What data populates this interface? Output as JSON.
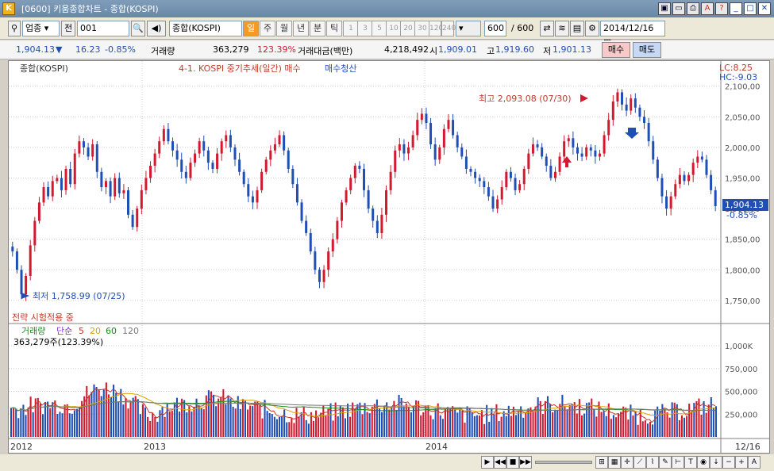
{
  "window": {
    "title": "[0600] 키움종합차트 - 종합(KOSPI)"
  },
  "toolbar": {
    "market": "업종",
    "jeon": "전",
    "code": "001",
    "name": "종합(KOSPI)",
    "periods": [
      "일",
      "주",
      "월",
      "년",
      "분",
      "틱"
    ],
    "minutes": [
      "1",
      "3",
      "5",
      "10",
      "20",
      "30",
      "120",
      "240"
    ],
    "count": "600",
    "count_max": "/ 600",
    "date": "2014/12/16"
  },
  "quote": {
    "price": "1,904.13",
    "arrow": "▼",
    "change": "16.23",
    "rate": "-0.85%",
    "volume_label": "거래량",
    "volume": "363,279",
    "volume_rate": "123.39%",
    "amount_label": "거래대금(백만)",
    "amount": "4,218,492",
    "open_label": "시",
    "open": "1,909.01",
    "high_label": "고",
    "high": "1,919.60",
    "low_label": "저",
    "low": "1,901.13",
    "buy": "매수",
    "sell": "매도"
  },
  "chart_data": {
    "type": "candlestick",
    "legend": {
      "name": "종합(KOSPI)",
      "strategy": "4-1. KOSPI 중기추세(일간) 매수",
      "strategy_sell": "매수청산"
    },
    "lc": "LC:8.25",
    "hc": "HC:-9.03",
    "ylim": [
      1720,
      2110
    ],
    "yticks": [
      "2,100,00",
      "2,050,00",
      "2,000,00",
      "1,950,00",
      "1,900,00",
      "1,850,00",
      "1,800,00",
      "1,750,00"
    ],
    "ytick_values": [
      2100,
      2050,
      2000,
      1950,
      1900,
      1850,
      1800,
      1750
    ],
    "last_price": "1,904.13",
    "last_rate": "-0.85%",
    "max_label": "최고 2,093.08 (07/30)",
    "min_label": "최저 1,758.99 (07/25)",
    "strategy_status": "전략 시험적용 중",
    "xlabels": [
      "2012",
      "2013",
      "2014"
    ],
    "xlabel_end": "12/16",
    "closes": [
      1830,
      1800,
      1760,
      1790,
      1840,
      1880,
      1910,
      1935,
      1920,
      1945,
      1950,
      1930,
      1965,
      1940,
      1990,
      2010,
      2000,
      1985,
      2005,
      1960,
      1935,
      1945,
      1920,
      1950,
      1925,
      1930,
      1890,
      1870,
      1900,
      1930,
      1950,
      1970,
      1990,
      2010,
      2030,
      2010,
      1995,
      1980,
      1960,
      1950,
      1975,
      1990,
      2010,
      1995,
      1975,
      1965,
      1990,
      2010,
      2020,
      2000,
      1980,
      1960,
      1940,
      1920,
      1910,
      1930,
      1960,
      1980,
      1995,
      2005,
      2020,
      1995,
      1965,
      1940,
      1910,
      1880,
      1860,
      1830,
      1800,
      1780,
      1800,
      1830,
      1850,
      1880,
      1910,
      1930,
      1950,
      1970,
      1965,
      1930,
      1900,
      1880,
      1860,
      1890,
      1930,
      1960,
      1995,
      2005,
      1990,
      2000,
      2020,
      2045,
      2055,
      2040,
      2005,
      1980,
      2000,
      2030,
      2045,
      2020,
      2000,
      1985,
      1965,
      1960,
      1950,
      1945,
      1935,
      1920,
      1900,
      1915,
      1935,
      1960,
      1950,
      1930,
      1940,
      1965,
      1990,
      2005,
      2000,
      1985,
      1970,
      1950,
      1960,
      1985,
      2010,
      2015,
      2000,
      1990,
      1985,
      2000,
      1995,
      1985,
      1990,
      2020,
      2045,
      2075,
      2090,
      2070,
      2060,
      2080,
      2065,
      2050,
      2040,
      2010,
      1980,
      1950,
      1920,
      1900,
      1920,
      1940,
      1955,
      1945,
      1955,
      1975,
      1985,
      1980,
      1955,
      1930,
      1904
    ],
    "volume_panel": {
      "legend": [
        "거래량",
        "단순",
        "5",
        "20",
        "60",
        "120"
      ],
      "legend_colors": [
        "#1c8c1c",
        "#8a2be2",
        "#c0392b",
        "#d8a200",
        "#1c8c1c",
        "#7a7a7a"
      ],
      "value": "363,279주(123.39%)",
      "yticks": [
        "1,000K",
        "750,000",
        "500,000",
        "250,000"
      ],
      "ytick_values": [
        1000,
        750,
        500,
        250
      ],
      "ylim": [
        0,
        1200
      ]
    },
    "markers": {
      "buy_signal": "buy-arrow",
      "sell_signal": "sell-arrow"
    }
  },
  "colors": {
    "up": "#d2192f",
    "down": "#1f4fb5",
    "grid": "#cfcfcf",
    "axis_text": "#555555"
  }
}
